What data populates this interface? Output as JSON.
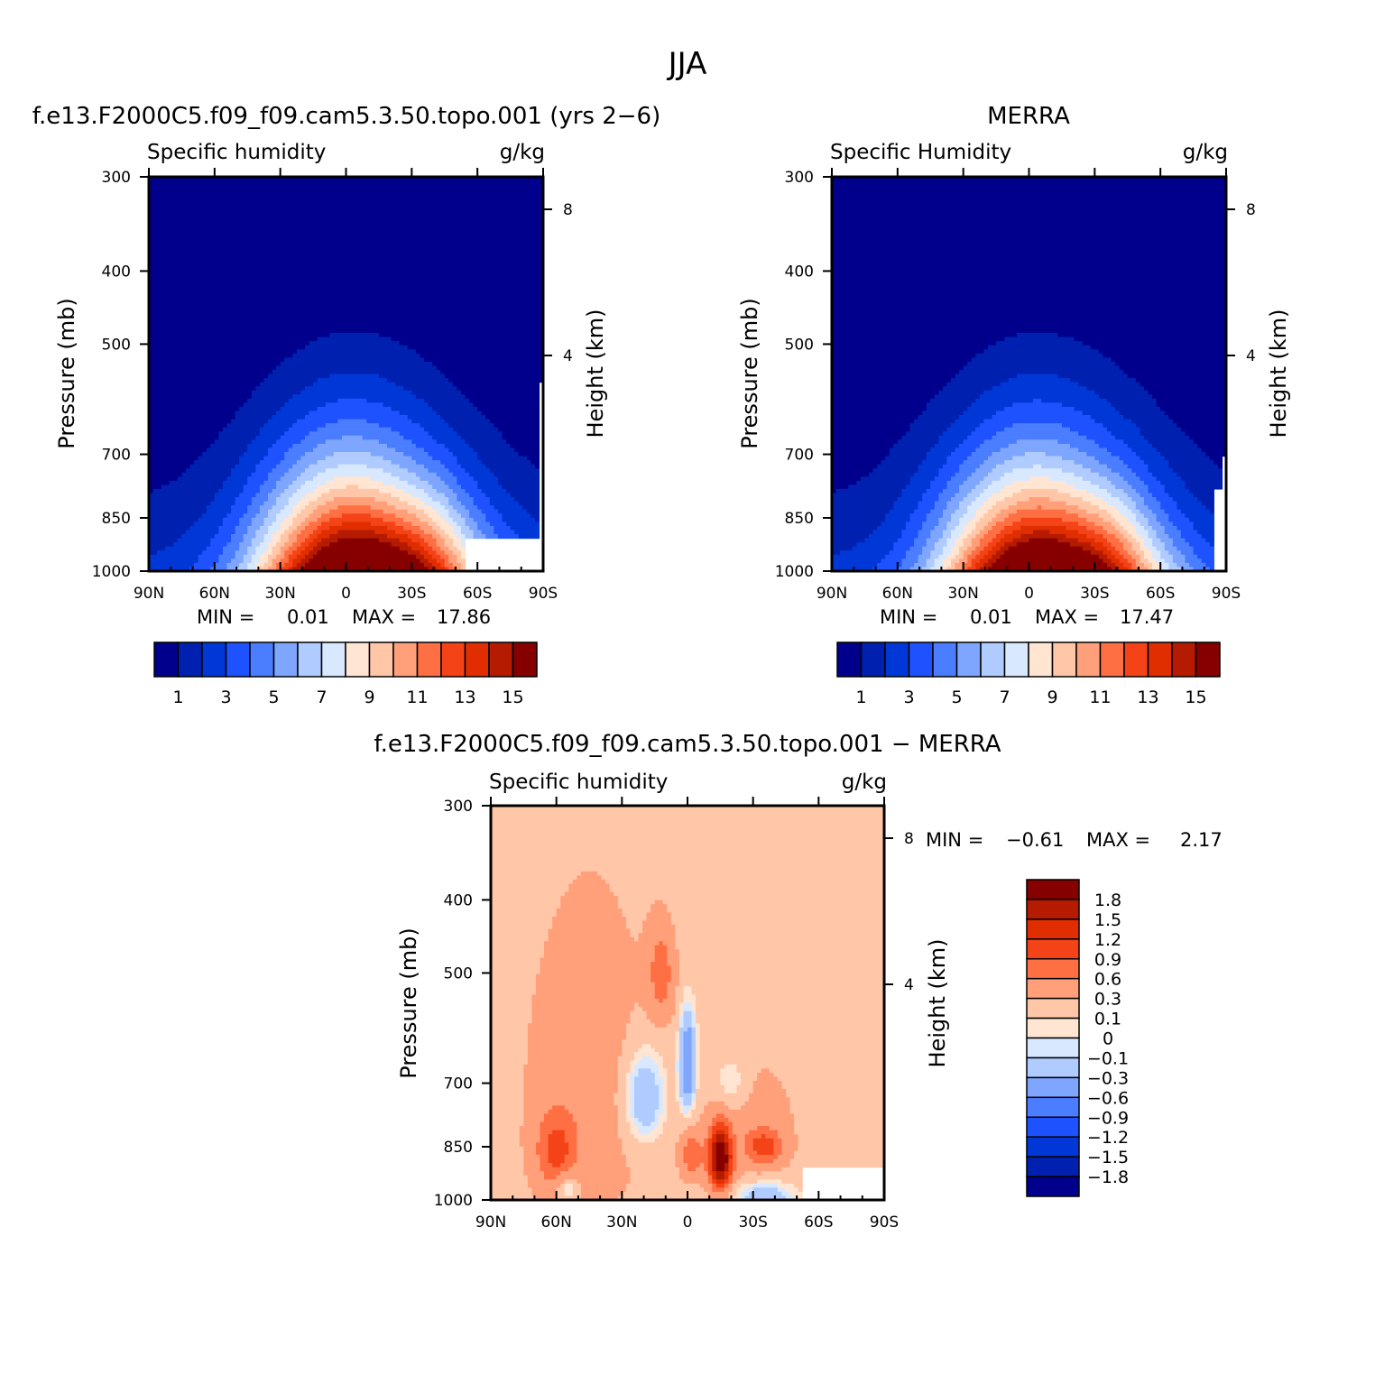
{
  "figure": {
    "title": "JJA"
  },
  "chart_data": [
    {
      "type": "contour",
      "title": "f.e13.F2000C5.f09_f09.cam5.3.50.topo.001 (yrs 2-6)",
      "variable": "Specific humidity",
      "units": "g/kg",
      "xlabel": "",
      "ylabel": "Pressure (mb)",
      "y2label": "Height (km)",
      "x_ticks": [
        "90N",
        "60N",
        "30N",
        "0",
        "30S",
        "60S",
        "90S"
      ],
      "y_ticks": [
        "300",
        "400",
        "500",
        "700",
        "850",
        "1000"
      ],
      "y2_ticks": [
        "8",
        "4"
      ],
      "ylim": [
        1000,
        300
      ],
      "min_label": "MIN =",
      "min_value": "0.01",
      "max_label": "MAX =",
      "max_value": "17.86",
      "peak_latitude": -7,
      "peak_value": 17.86,
      "levels": [
        1,
        2,
        3,
        4,
        5,
        6,
        7,
        8,
        9,
        10,
        11,
        12,
        13,
        14,
        15
      ],
      "colorbar_labels": [
        "1",
        "3",
        "5",
        "7",
        "9",
        "11",
        "13",
        "15"
      ],
      "colorbar_colors": [
        "#00008c",
        "#0020b0",
        "#0038d8",
        "#1e52ff",
        "#4a7dff",
        "#7ea6ff",
        "#b0cbff",
        "#d7e8ff",
        "#ffe5d2",
        "#ffc6a8",
        "#ffa07a",
        "#ff6f44",
        "#f54318",
        "#e02e00",
        "#b51b00",
        "#860000"
      ]
    },
    {
      "type": "contour",
      "title": "MERRA",
      "variable": "Specific Humidity",
      "units": "g/kg",
      "xlabel": "",
      "ylabel": "Pressure (mb)",
      "y2label": "Height (km)",
      "x_ticks": [
        "90N",
        "60N",
        "30N",
        "0",
        "30S",
        "60S",
        "90S"
      ],
      "y_ticks": [
        "300",
        "400",
        "500",
        "700",
        "850",
        "1000"
      ],
      "y2_ticks": [
        "8",
        "4"
      ],
      "ylim": [
        1000,
        300
      ],
      "min_label": "MIN =",
      "min_value": "0.01",
      "max_label": "MAX =",
      "max_value": "17.47",
      "peak_latitude": -8,
      "peak_value": 17.47,
      "levels": [
        1,
        2,
        3,
        4,
        5,
        6,
        7,
        8,
        9,
        10,
        11,
        12,
        13,
        14,
        15
      ],
      "colorbar_labels": [
        "1",
        "3",
        "5",
        "7",
        "9",
        "11",
        "13",
        "15"
      ],
      "colorbar_colors": [
        "#00008c",
        "#0020b0",
        "#0038d8",
        "#1e52ff",
        "#4a7dff",
        "#7ea6ff",
        "#b0cbff",
        "#d7e8ff",
        "#ffe5d2",
        "#ffc6a8",
        "#ffa07a",
        "#ff6f44",
        "#f54318",
        "#e02e00",
        "#b51b00",
        "#860000"
      ]
    },
    {
      "type": "contour",
      "title": "f.e13.F2000C5.f09_f09.cam5.3.50.topo.001 - MERRA",
      "variable": "Specific humidity",
      "units": "g/kg",
      "xlabel": "",
      "ylabel": "Pressure (mb)",
      "y2label": "Height (km)",
      "x_ticks": [
        "90N",
        "60N",
        "30N",
        "0",
        "30S",
        "60S",
        "90S"
      ],
      "y_ticks": [
        "300",
        "400",
        "500",
        "700",
        "850",
        "1000"
      ],
      "y2_ticks": [
        "8",
        "4"
      ],
      "ylim": [
        1000,
        300
      ],
      "min_label": "MIN =",
      "min_value": "-0.61",
      "max_label": "MAX =",
      "max_value": "2.17",
      "levels": [
        -1.8,
        -1.5,
        -1.2,
        -0.9,
        -0.6,
        -0.3,
        -0.1,
        0,
        0.1,
        0.3,
        0.6,
        0.9,
        1.2,
        1.5,
        1.8
      ],
      "colorbar_labels": [
        "1.8",
        "1.5",
        "1.2",
        "0.9",
        "0.6",
        "0.3",
        "0.1",
        "0",
        "-0.1",
        "-0.3",
        "-0.6",
        "-0.9",
        "-1.2",
        "-1.5",
        "-1.8"
      ],
      "colorbar_colors": [
        "#860000",
        "#b51b00",
        "#e02e00",
        "#f54318",
        "#ff6f44",
        "#ffa07a",
        "#ffc6a8",
        "#ffe5d2",
        "#d7e8ff",
        "#b0cbff",
        "#7ea6ff",
        "#4a7dff",
        "#1e52ff",
        "#0038d8",
        "#0020b0",
        "#00008c"
      ],
      "features": [
        {
          "name": "max-core",
          "lat": -15,
          "p": 870,
          "value": 2.17
        },
        {
          "name": "positive-band",
          "lat": -10,
          "p": 860,
          "value": 0.9
        },
        {
          "name": "negative-core",
          "lat": 0,
          "p": 660,
          "value": -0.61
        },
        {
          "name": "upper-positive",
          "lat": 15,
          "p": 500,
          "value": 0.6
        }
      ]
    }
  ]
}
